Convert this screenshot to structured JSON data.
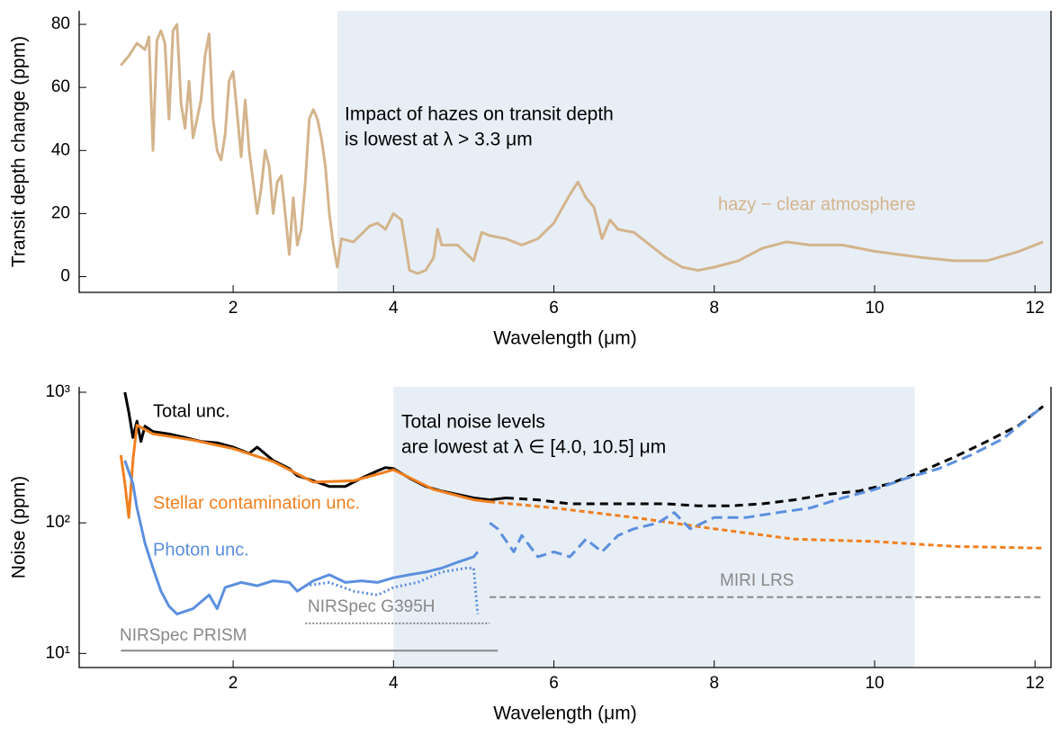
{
  "chart_data": [
    {
      "type": "line",
      "xlabel": "Wavelength (μm)",
      "ylabel": "Transit depth change (ppm)",
      "xlim": [
        0.08,
        12.2
      ],
      "ylim": [
        -5,
        84.3
      ],
      "xticks": [
        2,
        4,
        6,
        8,
        10,
        12
      ],
      "yticks": [
        0,
        20,
        40,
        60,
        80
      ],
      "shade": [
        3.3,
        12.2
      ],
      "shade_color": "#e8eef5",
      "annotation": [
        "Impact of hazes on transit depth",
        "is lowest at λ > 3.3 μm"
      ],
      "series": [
        {
          "name": "hazy − clear atmosphere",
          "color": "#d4b48c",
          "x": [
            0.6,
            0.7,
            0.8,
            0.9,
            0.95,
            1.0,
            1.05,
            1.1,
            1.15,
            1.2,
            1.25,
            1.3,
            1.35,
            1.4,
            1.45,
            1.5,
            1.55,
            1.6,
            1.65,
            1.7,
            1.75,
            1.8,
            1.85,
            1.9,
            1.95,
            2.0,
            2.05,
            2.1,
            2.15,
            2.2,
            2.25,
            2.3,
            2.35,
            2.4,
            2.45,
            2.5,
            2.55,
            2.6,
            2.65,
            2.7,
            2.75,
            2.8,
            2.85,
            2.9,
            2.95,
            3.0,
            3.05,
            3.1,
            3.15,
            3.2,
            3.25,
            3.3,
            3.35,
            3.5,
            3.7,
            3.8,
            3.9,
            4.0,
            4.1,
            4.15,
            4.2,
            4.3,
            4.4,
            4.5,
            4.55,
            4.6,
            4.8,
            5.0,
            5.1,
            5.2,
            5.4,
            5.6,
            5.8,
            6.0,
            6.2,
            6.3,
            6.4,
            6.5,
            6.6,
            6.7,
            6.8,
            7.0,
            7.2,
            7.4,
            7.6,
            7.8,
            8.0,
            8.3,
            8.6,
            8.9,
            9.2,
            9.6,
            10.0,
            10.3,
            10.6,
            11.0,
            11.4,
            11.8,
            12.1
          ],
          "values": [
            67,
            70,
            74,
            72,
            76,
            40,
            75,
            78,
            74,
            50,
            78,
            80,
            55,
            47,
            62,
            44,
            50,
            56,
            70,
            77,
            50,
            40,
            37,
            45,
            62,
            65,
            52,
            38,
            56,
            40,
            30,
            20,
            28,
            40,
            35,
            20,
            30,
            32,
            20,
            7,
            25,
            10,
            15,
            30,
            50,
            53,
            50,
            44,
            35,
            20,
            10,
            3,
            12,
            11,
            16,
            17,
            15,
            20,
            18,
            10,
            2,
            1,
            2,
            6,
            15,
            10,
            10,
            5,
            14,
            13,
            12,
            10,
            12,
            17,
            26,
            30,
            25,
            22,
            12,
            18,
            15,
            14,
            10,
            6,
            3,
            2,
            3,
            5,
            9,
            11,
            10,
            10,
            8,
            7,
            6,
            5,
            5,
            8,
            11
          ]
        }
      ]
    },
    {
      "type": "line",
      "log_y": true,
      "xlabel": "Wavelength (μm)",
      "ylabel": "Noise (ppm)",
      "xlim": [
        0.08,
        12.2
      ],
      "ylim": [
        7.8,
        1100
      ],
      "xticks": [
        2,
        4,
        6,
        8,
        10,
        12
      ],
      "yticks": [
        {
          "value": 10,
          "label": "10¹"
        },
        {
          "value": 100,
          "label": "10²"
        },
        {
          "value": 1000,
          "label": "10³"
        }
      ],
      "shade": [
        4.0,
        10.5
      ],
      "shade_color": "#e8eef5",
      "annotation": [
        "Total noise levels",
        "are lowest at λ ∈ [4.0, 10.5] μm"
      ],
      "series": [
        {
          "name": "Total unc.",
          "color": "#000000",
          "x": [
            0.65,
            0.7,
            0.75,
            0.8,
            0.85,
            0.9,
            1.0,
            1.2,
            1.4,
            1.6,
            1.8,
            2.0,
            2.2,
            2.3,
            2.5,
            2.7,
            2.8,
            3.0,
            3.2,
            3.4,
            3.6,
            3.8,
            3.9,
            4.0,
            4.2,
            4.4,
            4.6,
            4.8,
            5.0,
            5.2,
            5.4
          ],
          "values": [
            1000,
            700,
            450,
            600,
            420,
            550,
            500,
            480,
            450,
            420,
            410,
            380,
            340,
            380,
            300,
            260,
            230,
            210,
            190,
            190,
            220,
            250,
            265,
            260,
            220,
            190,
            175,
            165,
            155,
            150,
            155
          ]
        },
        {
          "color": "#000000",
          "dash": "9 6",
          "x": [
            5.4,
            5.8,
            6.2,
            6.6,
            7.0,
            7.4,
            7.8,
            8.2,
            8.6,
            9.0,
            9.4,
            9.8,
            10.2,
            10.6,
            11.0,
            11.4,
            11.8,
            12.1
          ],
          "values": [
            155,
            150,
            140,
            140,
            140,
            140,
            135,
            135,
            140,
            150,
            165,
            175,
            200,
            250,
            320,
            420,
            560,
            780
          ]
        },
        {
          "name": "Stellar contamination unc.",
          "color": "#f07f1e",
          "x": [
            0.6,
            0.65,
            0.7,
            0.75,
            0.8,
            1.0,
            1.5,
            2.0,
            2.5,
            3.0,
            3.5,
            4.0,
            4.5,
            5.0,
            5.2
          ],
          "values": [
            330,
            200,
            110,
            300,
            560,
            480,
            430,
            370,
            295,
            205,
            210,
            255,
            180,
            150,
            145
          ]
        },
        {
          "color": "#f07f1e",
          "dash": "6 4",
          "x": [
            5.2,
            6.0,
            7.0,
            8.0,
            9.0,
            10.0,
            11.0,
            12.1
          ],
          "values": [
            145,
            130,
            110,
            90,
            75,
            72,
            66,
            64
          ]
        },
        {
          "name": "Photon unc.",
          "color": "#5b8fdf",
          "x": [
            0.65,
            0.75,
            0.8,
            0.9,
            1.0,
            1.1,
            1.2,
            1.3,
            1.5,
            1.7,
            1.8,
            1.9,
            2.1,
            2.3,
            2.5,
            2.7,
            2.8,
            3.0,
            3.2,
            3.4,
            3.6,
            3.8,
            4.0,
            4.2,
            4.4,
            4.6,
            4.8,
            5.0,
            5.05
          ],
          "values": [
            300,
            200,
            130,
            70,
            45,
            30,
            23,
            20,
            22,
            28,
            22,
            32,
            35,
            33,
            36,
            35,
            30,
            36,
            40,
            35,
            36,
            35,
            38,
            40,
            42,
            45,
            50,
            55,
            60
          ]
        },
        {
          "color": "#5b8fdf",
          "dash": "2 3",
          "x": [
            2.9,
            3.2,
            3.5,
            3.8,
            4.0,
            4.3,
            4.6,
            4.9,
            5.0,
            5.05
          ],
          "values": [
            33,
            35,
            30,
            28,
            32,
            35,
            42,
            45,
            45,
            20
          ]
        },
        {
          "color": "#5b8fdf",
          "dash": "12 6",
          "x": [
            5.2,
            5.3,
            5.5,
            5.6,
            5.8,
            6.0,
            6.2,
            6.4,
            6.6,
            6.8,
            7.0,
            7.3,
            7.5,
            7.7,
            8.0,
            8.4,
            8.8,
            9.2,
            9.6,
            10.0,
            10.4,
            10.8,
            11.2,
            11.6,
            12.1
          ],
          "values": [
            100,
            90,
            60,
            80,
            55,
            60,
            55,
            75,
            60,
            80,
            90,
            100,
            120,
            90,
            110,
            110,
            120,
            130,
            155,
            180,
            220,
            260,
            330,
            440,
            780
          ]
        }
      ],
      "instruments": [
        {
          "name": "NIRSpec PRISM",
          "y": 10.5,
          "x": [
            0.6,
            5.3
          ],
          "color": "#888888",
          "dash": ""
        },
        {
          "name": "NIRSpec G395H",
          "y": 17,
          "x": [
            2.9,
            5.2
          ],
          "color": "#888888",
          "dash": "2 2"
        },
        {
          "name": "MIRI LRS",
          "y": 27,
          "x": [
            5.2,
            12.1
          ],
          "color": "#888888",
          "dash": "7 4"
        }
      ]
    }
  ]
}
